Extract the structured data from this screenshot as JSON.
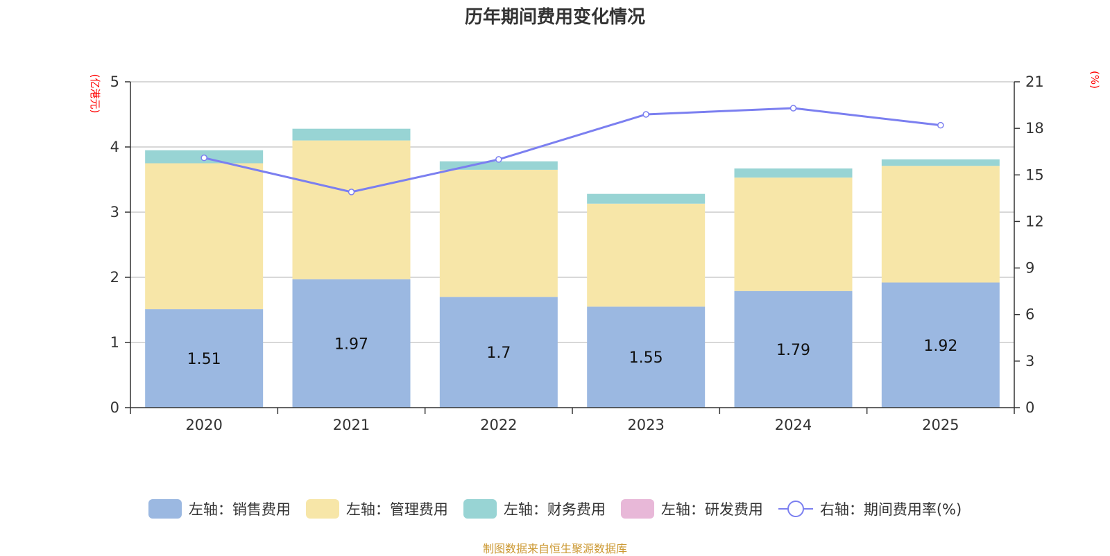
{
  "title": "历年期间费用变化情况",
  "source": "制图数据来自恒生聚源数据库",
  "chart_data": {
    "type": "bar",
    "stacked": true,
    "categories": [
      "2020",
      "2021",
      "2022",
      "2023",
      "2024",
      "2025"
    ],
    "left_axis": {
      "unit": "(亿港元)",
      "range": [
        0,
        5
      ],
      "ticks": [
        "0",
        "1",
        "2",
        "3",
        "4",
        "5"
      ]
    },
    "right_axis": {
      "unit": "(%)",
      "range": [
        0,
        21
      ],
      "ticks": [
        "0",
        "3",
        "6",
        "9",
        "12",
        "15",
        "18",
        "21"
      ]
    },
    "series": [
      {
        "name": "左轴：销售费用",
        "type": "bar",
        "axis": "left",
        "color": "#9bb8e1",
        "values": [
          1.51,
          1.97,
          1.7,
          1.55,
          1.79,
          1.92
        ],
        "labels": [
          "1.51",
          "1.97",
          "1.7",
          "1.55",
          "1.79",
          "1.92"
        ]
      },
      {
        "name": "左轴：管理费用",
        "type": "bar",
        "axis": "left",
        "color": "#f7e6a8",
        "values": [
          2.24,
          2.13,
          1.95,
          1.58,
          1.74,
          1.79
        ]
      },
      {
        "name": "左轴：财务费用",
        "type": "bar",
        "axis": "left",
        "color": "#98d4d4",
        "values": [
          0.2,
          0.18,
          0.13,
          0.15,
          0.14,
          0.1
        ]
      },
      {
        "name": "左轴：研发费用",
        "type": "bar",
        "axis": "left",
        "color": "#e8b8d8",
        "values": [
          0,
          0,
          0,
          0,
          0,
          0
        ]
      },
      {
        "name": "右轴：期间费用率(%)",
        "type": "line",
        "axis": "right",
        "color": "#7b7ff0",
        "values": [
          16.1,
          13.9,
          16.0,
          18.9,
          19.3,
          18.2
        ]
      }
    ]
  }
}
